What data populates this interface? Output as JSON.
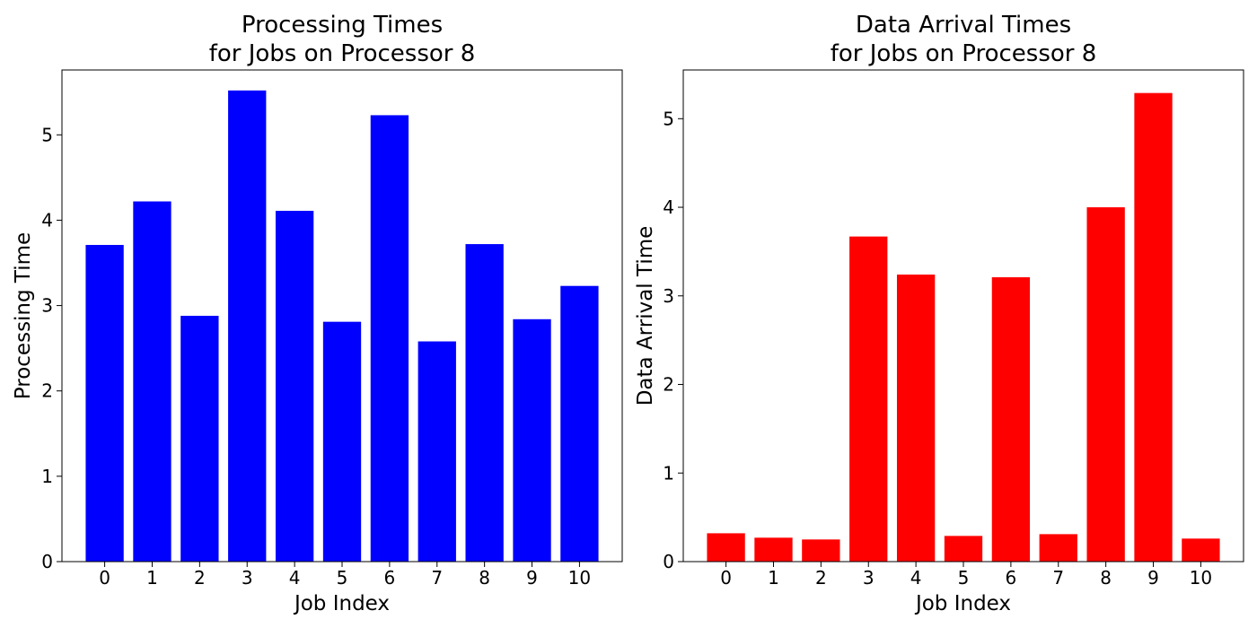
{
  "chart_data": [
    {
      "type": "bar",
      "title_line1": "Processing Times",
      "title_line2": "for Jobs on Processor 8",
      "xlabel": "Job Index",
      "ylabel": "Processing Time",
      "categories": [
        "0",
        "1",
        "2",
        "3",
        "4",
        "5",
        "6",
        "7",
        "8",
        "9",
        "10"
      ],
      "values": [
        3.71,
        4.22,
        2.88,
        5.52,
        4.11,
        2.81,
        5.23,
        2.58,
        3.72,
        2.84,
        3.23
      ],
      "ylim": [
        0,
        5.76
      ],
      "yticks": [
        "0",
        "1",
        "2",
        "3",
        "4",
        "5"
      ],
      "color": "#0000ff",
      "grid": false
    },
    {
      "type": "bar",
      "title_line1": "Data Arrival Times",
      "title_line2": "for Jobs on Processor 8",
      "xlabel": "Job Index",
      "ylabel": "Data Arrival Time",
      "categories": [
        "0",
        "1",
        "2",
        "3",
        "4",
        "5",
        "6",
        "7",
        "8",
        "9",
        "10"
      ],
      "values": [
        0.32,
        0.27,
        0.25,
        3.67,
        3.24,
        0.29,
        3.21,
        0.31,
        4.0,
        5.29,
        0.26
      ],
      "ylim": [
        0,
        5.55
      ],
      "yticks": [
        "0",
        "1",
        "2",
        "3",
        "4",
        "5"
      ],
      "color": "#ff0000",
      "grid": false
    }
  ]
}
